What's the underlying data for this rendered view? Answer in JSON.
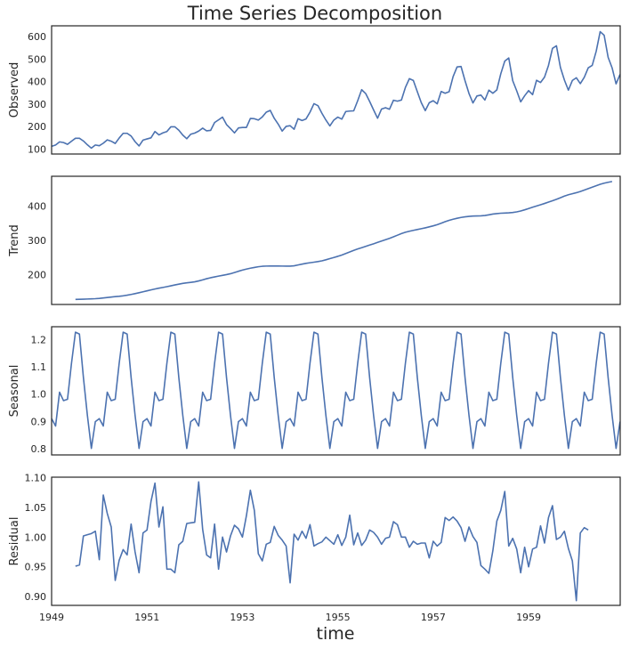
{
  "chart_data": {
    "type": "line",
    "title": "Time Series Decomposition",
    "xlabel": "time",
    "line_color": "#4c72b0",
    "x_start": "1949-01",
    "x_frequency": "monthly",
    "xlim": [
      1949,
      1960.92
    ],
    "xticks": [
      "1949",
      "1951",
      "1953",
      "1955",
      "1957",
      "1959"
    ],
    "grid": false,
    "panels": [
      {
        "name": "Observed",
        "ylabel": "Observed",
        "ylim": [
          78,
          648
        ],
        "yticks": [
          "100",
          "200",
          "300",
          "400",
          "500",
          "600"
        ],
        "values": [
          112,
          118,
          132,
          129,
          121,
          135,
          148,
          148,
          136,
          119,
          104,
          118,
          115,
          126,
          141,
          135,
          125,
          149,
          170,
          170,
          158,
          133,
          114,
          140,
          145,
          150,
          178,
          163,
          172,
          178,
          199,
          199,
          184,
          162,
          146,
          166,
          171,
          180,
          193,
          181,
          183,
          218,
          230,
          242,
          209,
          191,
          172,
          194,
          196,
          196,
          236,
          235,
          229,
          243,
          264,
          272,
          237,
          211,
          180,
          201,
          204,
          188,
          235,
          227,
          234,
          264,
          302,
          293,
          259,
          229,
          203,
          229,
          242,
          233,
          267,
          269,
          270,
          315,
          364,
          347,
          312,
          274,
          237,
          278,
          284,
          277,
          317,
          313,
          318,
          374,
          413,
          405,
          355,
          306,
          271,
          306,
          315,
          301,
          356,
          348,
          355,
          422,
          465,
          467,
          404,
          347,
          305,
          336,
          340,
          318,
          362,
          348,
          363,
          435,
          491,
          505,
          404,
          359,
          310,
          337,
          360,
          342,
          406,
          396,
          420,
          472,
          548,
          559,
          463,
          407,
          362,
          405,
          417,
          391,
          419,
          461,
          472,
          535,
          622,
          606,
          508,
          461,
          390,
          432
        ]
      },
      {
        "name": "Trend",
        "ylabel": "Trend",
        "ylim": [
          112,
          488
        ],
        "yticks": [
          "200",
          "300",
          "400"
        ],
        "values": [
          null,
          null,
          null,
          null,
          null,
          null,
          126.8,
          127.2,
          127.6,
          128.0,
          128.6,
          129.0,
          129.8,
          131.0,
          132.4,
          133.8,
          135.0,
          136.0,
          137.4,
          139.2,
          141.4,
          143.8,
          146.4,
          149.2,
          152.0,
          154.8,
          157.4,
          159.8,
          162.0,
          164.2,
          166.6,
          169.2,
          171.6,
          173.8,
          175.4,
          176.8,
          178.4,
          181.0,
          184.2,
          187.6,
          190.4,
          192.8,
          195.2,
          197.4,
          199.6,
          202.2,
          205.6,
          209.4,
          212.8,
          215.8,
          218.4,
          220.6,
          222.6,
          224.0,
          224.6,
          224.8,
          224.8,
          224.8,
          224.6,
          224.4,
          224.4,
          225.4,
          227.8,
          230.4,
          232.6,
          234.4,
          236.0,
          237.8,
          240.0,
          243.0,
          246.4,
          249.8,
          253.2,
          257.0,
          261.4,
          266.0,
          270.6,
          274.8,
          278.6,
          282.4,
          286.2,
          290.0,
          294.0,
          298.0,
          302.0,
          306.0,
          310.4,
          315.2,
          320.0,
          323.8,
          326.8,
          329.4,
          331.8,
          334.2,
          336.8,
          339.6,
          342.6,
          346.0,
          350.2,
          354.8,
          358.8,
          362.0,
          364.8,
          367.2,
          369.0,
          370.4,
          371.2,
          371.6,
          372.0,
          373.0,
          375.0,
          377.2,
          378.6,
          379.6,
          380.2,
          380.8,
          381.8,
          383.6,
          386.2,
          389.6,
          393.4,
          397.2,
          400.8,
          404.4,
          408.2,
          412.2,
          416.2,
          420.4,
          425.0,
          429.8,
          433.8,
          436.8,
          439.8,
          443.2,
          447.4,
          451.8,
          456.0,
          460.4,
          464.6,
          467.8,
          470.4,
          472.6,
          null,
          null,
          null,
          null,
          null,
          null
        ]
      },
      {
        "name": "Seasonal",
        "ylabel": "Seasonal",
        "ylim": [
          0.777,
          1.247
        ],
        "yticks": [
          "0.8",
          "0.9",
          "1.0",
          "1.1",
          "1.2"
        ],
        "period": [
          0.91,
          0.883,
          1.007,
          0.976,
          0.981,
          1.113,
          1.227,
          1.22,
          1.061,
          0.922,
          0.801,
          0.899
        ]
      },
      {
        "name": "Residual",
        "ylabel": "Residual",
        "ylim": [
          0.885,
          1.101
        ],
        "yticks": [
          "0.90",
          "0.95",
          "1.00",
          "1.05",
          "1.10"
        ],
        "values": [
          null,
          null,
          null,
          null,
          null,
          null,
          0.951,
          0.953,
          1.002,
          1.004,
          1.006,
          1.01,
          0.962,
          1.071,
          1.04,
          1.017,
          0.927,
          0.961,
          0.979,
          0.97,
          1.022,
          0.975,
          0.94,
          1.007,
          1.012,
          1.06,
          1.091,
          1.017,
          1.051,
          0.946,
          0.946,
          0.94,
          0.987,
          0.993,
          1.023,
          1.024,
          1.025,
          1.093,
          1.013,
          0.97,
          0.965,
          1.022,
          0.946,
          1.0,
          0.975,
          1.002,
          1.02,
          1.014,
          1.0,
          1.036,
          1.079,
          1.045,
          0.972,
          0.96,
          0.988,
          0.991,
          1.018,
          1.003,
          0.995,
          0.985,
          0.923,
          1.005,
          0.995,
          1.01,
          0.998,
          1.021,
          0.985,
          0.989,
          0.992,
          1.0,
          0.994,
          0.988,
          1.004,
          0.986,
          1.0,
          1.037,
          0.987,
          1.007,
          0.986,
          0.995,
          1.012,
          1.008,
          1.0,
          0.988,
          0.998,
          1.0,
          1.026,
          1.021,
          1.0,
          1.0,
          0.983,
          0.993,
          0.988,
          0.99,
          0.99,
          0.965,
          0.993,
          0.985,
          0.991,
          1.033,
          1.028,
          1.034,
          1.027,
          1.016,
          0.993,
          1.017,
          1.001,
          0.991,
          0.952,
          0.946,
          0.939,
          0.977,
          1.027,
          1.045,
          1.077,
          0.985,
          0.998,
          0.98,
          0.94,
          0.983,
          0.95,
          0.98,
          0.983,
          1.019,
          0.99,
          1.033,
          1.053,
          0.996,
          1.0,
          1.01,
          0.981,
          0.96,
          0.893,
          1.007,
          1.016,
          1.012,
          null,
          null,
          null,
          null,
          null,
          null
        ]
      }
    ]
  }
}
